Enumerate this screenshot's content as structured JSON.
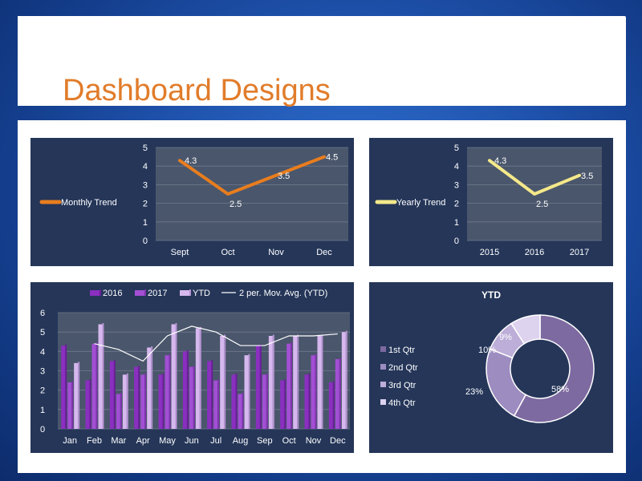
{
  "slide": {
    "title": "Dashboard Designs"
  },
  "colors": {
    "panel_bg": "#253659",
    "plot_bg": "#4a566b",
    "orange": "#e87d1e",
    "yellow": "#f4e88a",
    "purple_2016": "#8a2fc0",
    "purple_2017": "#a24fd4",
    "ytd": "#d6b8ee",
    "title_orange": "#e17c2a"
  },
  "chart_data": [
    {
      "id": "monthly",
      "type": "line",
      "categories": [
        "Sept",
        "Oct",
        "Nov",
        "Dec"
      ],
      "series": [
        {
          "name": "Monthly Trend",
          "values": [
            4.3,
            2.5,
            3.5,
            4.5
          ]
        }
      ],
      "yticks": [
        "0",
        "1",
        "2",
        "3",
        "4",
        "5"
      ],
      "ylim": [
        0,
        5
      ],
      "grid": true,
      "legend": "left"
    },
    {
      "id": "yearly",
      "type": "line",
      "categories": [
        "2015",
        "2016",
        "2017"
      ],
      "series": [
        {
          "name": "Yearly Trend",
          "values": [
            4.3,
            2.5,
            3.5
          ]
        }
      ],
      "yticks": [
        "0",
        "1",
        "2",
        "3",
        "4",
        "5"
      ],
      "ylim": [
        0,
        5
      ],
      "grid": true,
      "legend": "left"
    },
    {
      "id": "monthly_bars",
      "type": "bar",
      "categories": [
        "Jan",
        "Feb",
        "Mar",
        "Apr",
        "May",
        "Jun",
        "Jul",
        "Aug",
        "Sep",
        "Oct",
        "Nov",
        "Dec"
      ],
      "series": [
        {
          "name": "2016",
          "values": [
            4.3,
            2.5,
            3.5,
            3.2,
            2.8,
            4.0,
            3.5,
            2.8,
            4.3,
            2.5,
            2.8,
            2.4
          ]
        },
        {
          "name": "2017",
          "values": [
            2.4,
            4.4,
            1.8,
            2.8,
            3.8,
            3.2,
            2.5,
            1.8,
            2.8,
            4.4,
            3.8,
            3.6
          ]
        },
        {
          "name": "YTD",
          "values": [
            3.4,
            5.4,
            2.8,
            4.2,
            5.4,
            5.2,
            4.8,
            3.8,
            4.8,
            4.8,
            4.8,
            5.0
          ]
        }
      ],
      "trendline": {
        "name": "2 per. Mov. Avg. (YTD)",
        "values": [
          null,
          4.4,
          4.1,
          3.5,
          4.8,
          5.3,
          5.0,
          4.3,
          4.3,
          4.8,
          4.8,
          4.9
        ]
      },
      "yticks": [
        "0",
        "1",
        "2",
        "3",
        "4",
        "5",
        "6"
      ],
      "ylim": [
        0,
        6
      ],
      "grid": true,
      "legend": "top"
    },
    {
      "id": "ytd_pie",
      "type": "pie",
      "title": "YTD",
      "labels": [
        "1st Qtr",
        "2nd Qtr",
        "3rd Qtr",
        "4th Qtr"
      ],
      "values": [
        58,
        23,
        10,
        9
      ],
      "value_labels": [
        "58%",
        "23%",
        "10%",
        "9%"
      ],
      "colors": [
        "#7d6aa0",
        "#9d8cc0",
        "#bcaed8",
        "#ddd3ef"
      ],
      "legend": "left"
    }
  ]
}
